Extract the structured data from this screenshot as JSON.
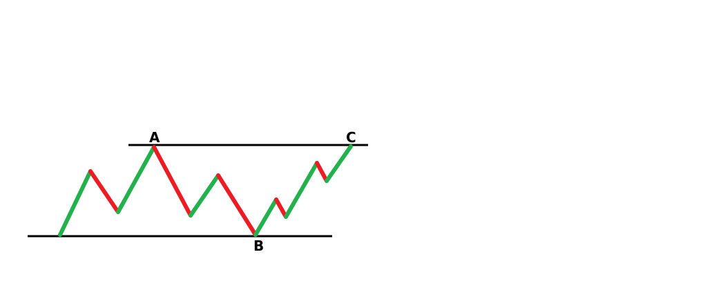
{
  "diagram": {
    "labels": {
      "a": "A",
      "b": "B",
      "c": "C"
    },
    "colors": {
      "up_leg": "#22b14c",
      "down_leg": "#ed1c24",
      "level_line": "#000000",
      "background": "#ffffff"
    }
  }
}
